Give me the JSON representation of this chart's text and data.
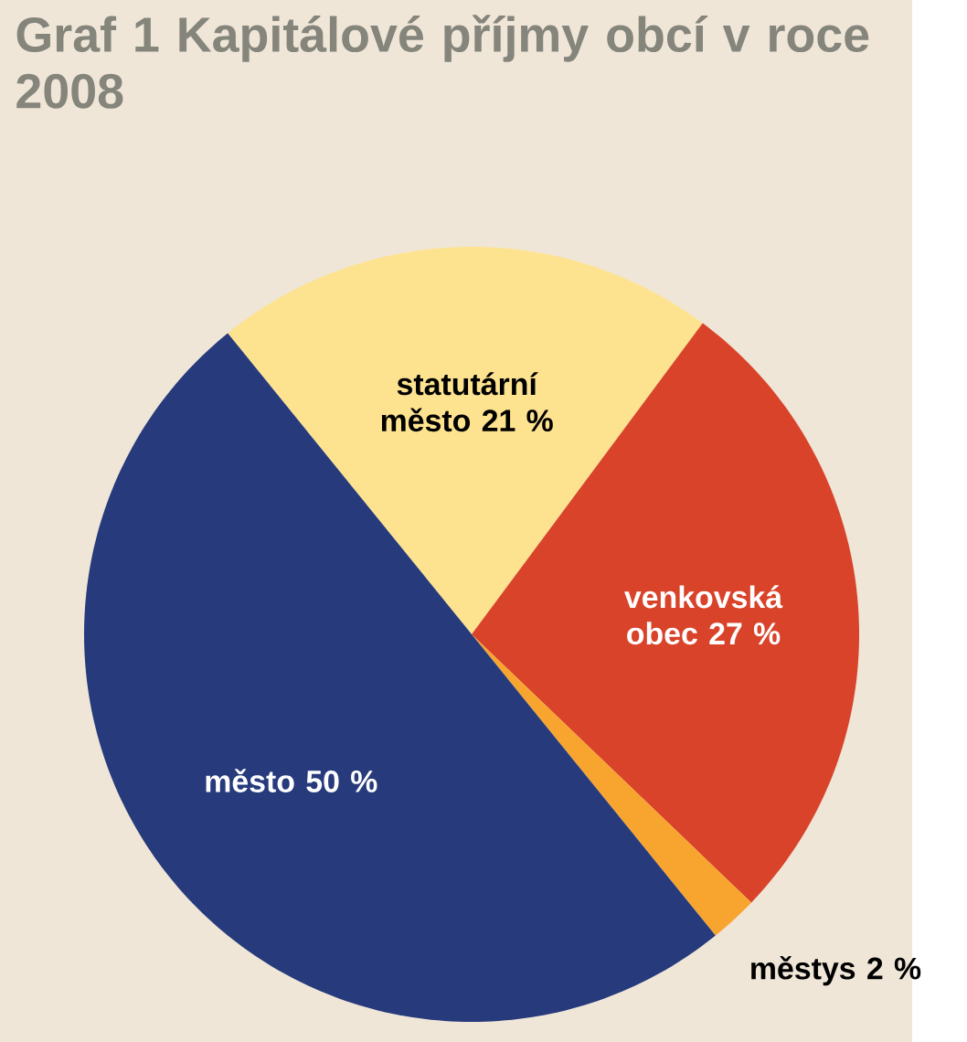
{
  "chart_data": {
    "type": "pie",
    "title": "Graf 1 Kapitálové příjmy obcí v roce 2008",
    "categories": [
      "statutární město",
      "venkovská obec",
      "městys",
      "město"
    ],
    "values": [
      21,
      27,
      2,
      50
    ],
    "value_labels": [
      "21 %",
      "27 %",
      "2 %",
      "50 %"
    ],
    "colors": [
      "#fde38f",
      "#d9432a",
      "#f8a530",
      "#263a7c"
    ]
  }
}
